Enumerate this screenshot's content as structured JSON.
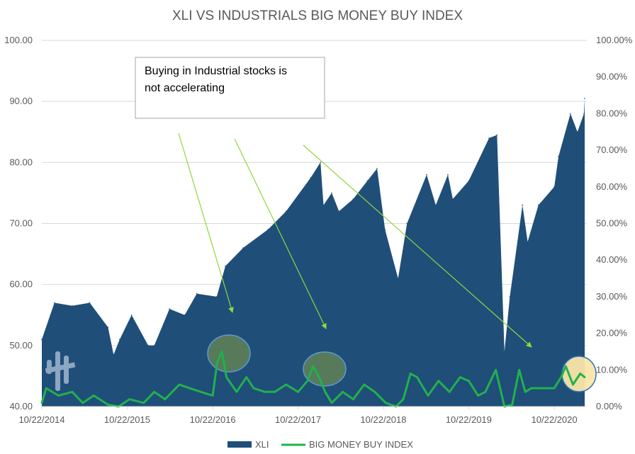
{
  "chart_data": {
    "type": "area",
    "title": "XLI VS INDUSTRIALS BIG MONEY BUY INDEX",
    "xlabel": "",
    "ylabel": "",
    "x_tick_labels": [
      "10/22/2014",
      "10/22/2015",
      "10/22/2016",
      "10/22/2017",
      "10/22/2018",
      "10/22/2019",
      "10/22/2020"
    ],
    "y_left": {
      "ylim": [
        40,
        100
      ],
      "tick_labels": [
        "40.00",
        "50.00",
        "60.00",
        "70.00",
        "80.00",
        "90.00",
        "100.00"
      ]
    },
    "y_right": {
      "ylim": [
        0,
        100
      ],
      "tick_labels": [
        "0.00%",
        "10.00%",
        "20.00%",
        "30.00%",
        "40.00%",
        "50.00%",
        "60.00%",
        "70.00%",
        "80.00%",
        "90.00%",
        "100.00%"
      ]
    },
    "grid": true,
    "legend_position": "bottom",
    "series": [
      {
        "name": "XLI",
        "kind": "area",
        "axis": "left",
        "color": "#1f4e79",
        "x": [
          "2014-10-22",
          "2014-12-15",
          "2015-03-01",
          "2015-05-15",
          "2015-08-01",
          "2015-08-25",
          "2015-09-20",
          "2015-11-10",
          "2016-01-20",
          "2016-02-15",
          "2016-04-20",
          "2016-06-24",
          "2016-08-15",
          "2016-11-08",
          "2016-12-15",
          "2017-03-01",
          "2017-06-15",
          "2017-09-01",
          "2017-12-15",
          "2018-01-26",
          "2018-02-08",
          "2018-03-15",
          "2018-04-15",
          "2018-06-15",
          "2018-08-15",
          "2018-09-25",
          "2018-10-29",
          "2018-12-24",
          "2019-01-31",
          "2019-04-25",
          "2019-06-03",
          "2019-07-25",
          "2019-08-15",
          "2019-10-22",
          "2020-01-17",
          "2020-02-20",
          "2020-03-23",
          "2020-04-15",
          "2020-06-08",
          "2020-06-30",
          "2020-08-15",
          "2020-10-22",
          "2020-11-09",
          "2020-12-30",
          "2021-01-29",
          "2021-02-26",
          "2021-03-01"
        ],
        "values": [
          51,
          57,
          56.5,
          57,
          53,
          48.5,
          51,
          55,
          50,
          50,
          56,
          55,
          58.5,
          58,
          63,
          66,
          69,
          72,
          77.5,
          80,
          73,
          75,
          72,
          74,
          77,
          79,
          69,
          61,
          70,
          78,
          73,
          78,
          74,
          77,
          84,
          84.5,
          49,
          58,
          73,
          67,
          73,
          76,
          81,
          88,
          85,
          88,
          90.5
        ]
      },
      {
        "name": "BIG MONEY BUY INDEX",
        "kind": "line",
        "axis": "right",
        "color": "#22b14c",
        "x": [
          "2014-10-22",
          "2014-11-10",
          "2015-01-01",
          "2015-03-01",
          "2015-04-15",
          "2015-06-01",
          "2015-08-01",
          "2015-09-15",
          "2015-11-01",
          "2016-01-01",
          "2016-02-15",
          "2016-04-01",
          "2016-06-01",
          "2016-07-15",
          "2016-09-01",
          "2016-10-22",
          "2016-11-10",
          "2016-11-30",
          "2016-12-20",
          "2017-02-01",
          "2017-03-15",
          "2017-04-15",
          "2017-06-01",
          "2017-07-15",
          "2017-09-01",
          "2017-10-22",
          "2017-12-01",
          "2017-12-25",
          "2018-01-20",
          "2018-02-15",
          "2018-03-15",
          "2018-05-01",
          "2018-06-15",
          "2018-08-01",
          "2018-09-15",
          "2018-11-01",
          "2018-12-15",
          "2019-01-15",
          "2019-02-15",
          "2019-03-15",
          "2019-05-01",
          "2019-06-15",
          "2019-08-01",
          "2019-09-15",
          "2019-10-22",
          "2019-12-01",
          "2020-01-01",
          "2020-02-15",
          "2020-03-23",
          "2020-04-25",
          "2020-05-25",
          "2020-06-20",
          "2020-07-15",
          "2020-09-01",
          "2020-10-22",
          "2020-11-20",
          "2020-12-10",
          "2021-01-10",
          "2021-02-10",
          "2021-03-01"
        ],
        "values": [
          1,
          5,
          3,
          4,
          1,
          3,
          0.5,
          0,
          2,
          1,
          4,
          2,
          6,
          5,
          4,
          3,
          12,
          15,
          8,
          4,
          8,
          5,
          4,
          4,
          6,
          4,
          7,
          11,
          8,
          4,
          1,
          4,
          2,
          6,
          4,
          1,
          0,
          2,
          9,
          8,
          3,
          7,
          4,
          8,
          7,
          3,
          4,
          10,
          0,
          0.5,
          10,
          4,
          5,
          5,
          5,
          8,
          11,
          6,
          9,
          8
        ]
      }
    ],
    "annotations": [
      {
        "text": [
          "Buying in Industrial stocks is",
          "not accelerating"
        ]
      }
    ]
  }
}
